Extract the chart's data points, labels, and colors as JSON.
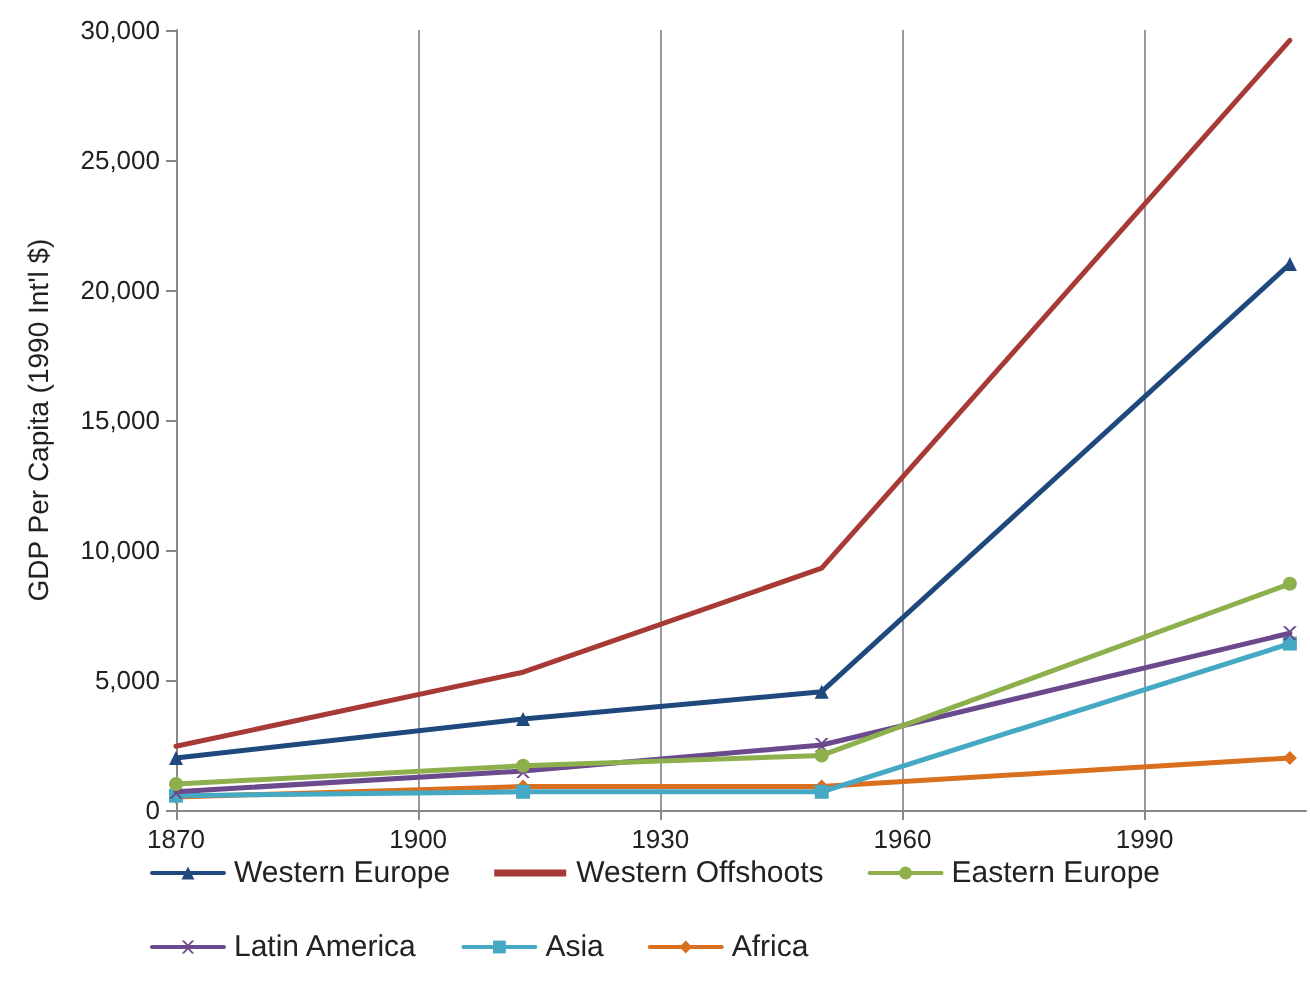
{
  "chart_data": {
    "type": "line",
    "ylabel": "GDP Per Capita (1990 Int'l $)",
    "xlim": [
      1870,
      2010
    ],
    "xticks": [
      1870,
      1900,
      1930,
      1960,
      1990
    ],
    "ylim": [
      0,
      30000
    ],
    "yticks": [
      {
        "value": 0,
        "label": "0"
      },
      {
        "value": 5000,
        "label": "5,000"
      },
      {
        "value": 10000,
        "label": "10,000"
      },
      {
        "value": 15000,
        "label": "15,000"
      },
      {
        "value": 20000,
        "label": "20,000"
      },
      {
        "value": 25000,
        "label": "25,000"
      },
      {
        "value": 30000,
        "label": "30,000"
      }
    ],
    "grid": "x",
    "legend": "bottom",
    "line_style": "solid",
    "x": [
      1870,
      1913,
      1950,
      2008
    ],
    "series": [
      {
        "name": "Western Europe",
        "color": "#1f497d",
        "marker": "triangle",
        "values": [
          2000,
          3500,
          4550,
          21000
        ]
      },
      {
        "name": "Western Offshoots",
        "color": "#a83a36",
        "marker": "none",
        "values": [
          2450,
          5300,
          9300,
          29600
        ]
      },
      {
        "name": "Eastern Europe",
        "color": "#8db04c",
        "marker": "circle",
        "values": [
          1000,
          1700,
          2100,
          8700
        ]
      },
      {
        "name": "Latin America",
        "color": "#6a4a8c",
        "marker": "cross",
        "values": [
          700,
          1500,
          2500,
          6800
        ]
      },
      {
        "name": "Asia",
        "color": "#45a9c4",
        "marker": "square",
        "values": [
          550,
          700,
          700,
          6400
        ]
      },
      {
        "name": "Africa",
        "color": "#d9701f",
        "marker": "diamond",
        "values": [
          500,
          900,
          900,
          2000
        ]
      }
    ]
  }
}
